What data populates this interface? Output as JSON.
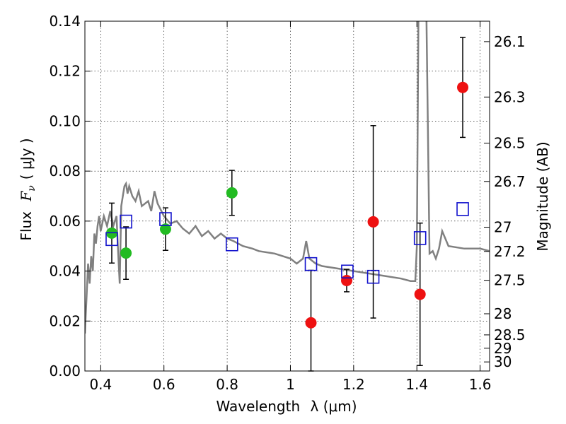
{
  "chart_data": {
    "type": "scatter",
    "title": "",
    "xlabel": "Wavelength",
    "xlabel_math": "λ (μm)",
    "ylabel": "Flux",
    "ylabel_math": "F",
    "ylabel_math_sub": "ν",
    "ylabel_unit": "( μJy )",
    "ylabel_right": "Magnitude (AB)",
    "xlim": [
      0.35,
      1.63
    ],
    "ylim": [
      0.0,
      0.14
    ],
    "grid": true,
    "x_ticks": [
      0.4,
      0.6,
      0.8,
      1.0,
      1.2,
      1.4,
      1.6
    ],
    "x_tick_labels": [
      "0.4",
      "0.6",
      "0.8",
      "1",
      "1.2",
      "1.4",
      "1.6"
    ],
    "y_ticks": [
      0.0,
      0.02,
      0.04,
      0.06,
      0.08,
      0.1,
      0.12,
      0.14
    ],
    "y_tick_labels": [
      "0.00",
      "0.02",
      "0.04",
      "0.06",
      "0.08",
      "0.10",
      "0.12",
      "0.14"
    ],
    "right_ticks": [
      26.1,
      26.3,
      26.5,
      26.7,
      27,
      27.2,
      27.5,
      28,
      28.5,
      29,
      30
    ],
    "right_tick_labels": [
      "26.1",
      "26.3",
      "26.5",
      "26.7",
      "27",
      "27.2",
      "27.5",
      "28",
      "28.5",
      "29",
      "30"
    ],
    "colors": {
      "green": "#22bb22",
      "red": "#ee1111",
      "blue": "#1111cc",
      "model": "#808080",
      "errorbar": "#000000"
    },
    "series": [
      {
        "marker": "circle-green",
        "x": [
          0.435,
          0.48,
          0.605,
          0.815
        ],
        "y": [
          0.0552,
          0.0472,
          0.0568,
          0.0713
        ],
        "err": [
          0.012,
          0.0105,
          0.0085,
          0.009
        ]
      },
      {
        "marker": "circle-red",
        "x": [
          1.065,
          1.178,
          1.262,
          1.41,
          1.545
        ],
        "y": [
          0.0193,
          0.0362,
          0.0597,
          0.0307,
          0.1135
        ],
        "err": [
          0.021,
          0.0045,
          0.0385,
          0.0285,
          0.02
        ]
      },
      {
        "marker": "square-blue",
        "x": [
          0.435,
          0.48,
          0.605,
          0.815,
          1.065,
          1.18,
          1.262,
          1.41,
          1.545
        ],
        "y": [
          0.0528,
          0.0598,
          0.0608,
          0.0507,
          0.0428,
          0.0398,
          0.0377,
          0.0532,
          0.0648
        ]
      },
      {
        "type": "line",
        "marker": "model-spectrum",
        "x": [
          0.35,
          0.36,
          0.365,
          0.37,
          0.375,
          0.38,
          0.385,
          0.39,
          0.395,
          0.4,
          0.41,
          0.42,
          0.43,
          0.44,
          0.45,
          0.455,
          0.46,
          0.465,
          0.47,
          0.475,
          0.48,
          0.485,
          0.49,
          0.5,
          0.51,
          0.52,
          0.53,
          0.54,
          0.55,
          0.56,
          0.57,
          0.58,
          0.6,
          0.62,
          0.64,
          0.66,
          0.68,
          0.7,
          0.72,
          0.74,
          0.76,
          0.78,
          0.8,
          0.82,
          0.85,
          0.88,
          0.9,
          0.95,
          1.0,
          1.02,
          1.04,
          1.05,
          1.06,
          1.08,
          1.1,
          1.15,
          1.2,
          1.25,
          1.3,
          1.35,
          1.38,
          1.395,
          1.4,
          1.405,
          1.41,
          1.42,
          1.43,
          1.44,
          1.45,
          1.46,
          1.47,
          1.48,
          1.5,
          1.55,
          1.6,
          1.63
        ],
        "y": [
          0.015,
          0.043,
          0.035,
          0.046,
          0.04,
          0.055,
          0.051,
          0.058,
          0.062,
          0.056,
          0.062,
          0.058,
          0.064,
          0.058,
          0.062,
          0.048,
          0.035,
          0.066,
          0.07,
          0.074,
          0.075,
          0.071,
          0.074,
          0.07,
          0.068,
          0.072,
          0.066,
          0.067,
          0.068,
          0.064,
          0.072,
          0.067,
          0.062,
          0.059,
          0.06,
          0.057,
          0.055,
          0.058,
          0.054,
          0.056,
          0.053,
          0.055,
          0.053,
          0.052,
          0.05,
          0.049,
          0.048,
          0.047,
          0.045,
          0.043,
          0.045,
          0.052,
          0.045,
          0.043,
          0.042,
          0.041,
          0.04,
          0.039,
          0.038,
          0.037,
          0.036,
          0.036,
          0.05,
          0.145,
          0.145,
          0.145,
          0.145,
          0.047,
          0.048,
          0.045,
          0.049,
          0.056,
          0.05,
          0.049,
          0.049,
          0.048
        ]
      }
    ]
  }
}
